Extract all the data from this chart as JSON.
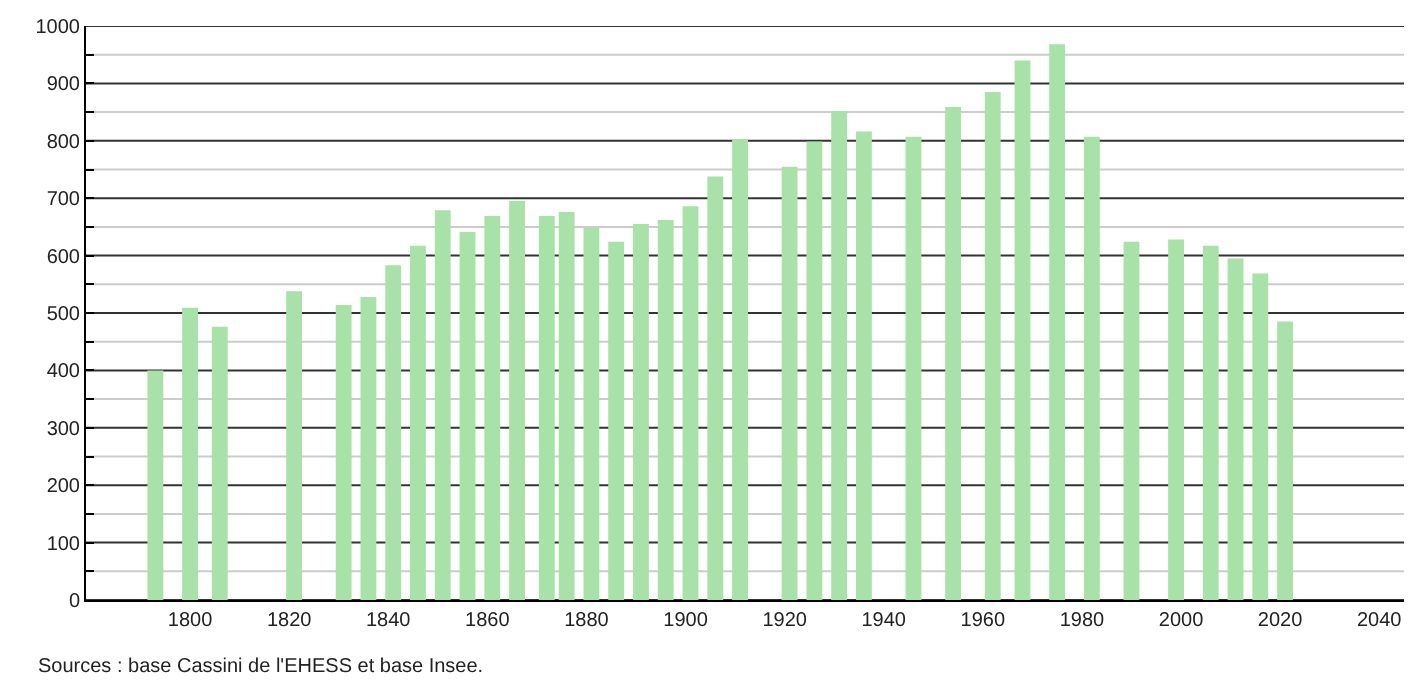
{
  "chart_data": {
    "type": "bar",
    "color": "#a9e2a9",
    "x": [
      1793,
      1800,
      1806,
      1821,
      1831,
      1836,
      1841,
      1846,
      1851,
      1856,
      1861,
      1866,
      1872,
      1876,
      1881,
      1886,
      1891,
      1896,
      1901,
      1906,
      1911,
      1921,
      1926,
      1931,
      1936,
      1946,
      1954,
      1962,
      1968,
      1975,
      1982,
      1990,
      1999,
      2006,
      2011,
      2016,
      2021
    ],
    "values": [
      400,
      509,
      476,
      538,
      514,
      528,
      583,
      617,
      679,
      641,
      669,
      695,
      669,
      676,
      648,
      624,
      655,
      662,
      686,
      738,
      803,
      755,
      799,
      852,
      816,
      807,
      859,
      885,
      940,
      968,
      807,
      624,
      628,
      617,
      595,
      569,
      485
    ],
    "xlim": [
      1779,
      2045
    ],
    "xticks": [
      1800,
      1820,
      1840,
      1860,
      1880,
      1900,
      1920,
      1940,
      1960,
      1980,
      2000,
      2020,
      2040
    ],
    "ylim": [
      0,
      1000
    ],
    "yticks": [
      0,
      {
        "value": 50,
        "label": null
      },
      100,
      {
        "value": 150,
        "label": null
      },
      200,
      {
        "value": 250,
        "label": null
      },
      300,
      {
        "value": 350,
        "label": null
      },
      400,
      {
        "value": 450,
        "label": null
      },
      500,
      {
        "value": 550,
        "label": null
      },
      600,
      {
        "value": 650,
        "label": null
      },
      700,
      {
        "value": 750,
        "label": null
      },
      800,
      {
        "value": 850,
        "label": null
      },
      900,
      {
        "value": 950,
        "label": null
      },
      1000
    ],
    "grid": "y",
    "annotations": [
      "Sources : base Cassini de l'EHESS et base Insee."
    ]
  }
}
